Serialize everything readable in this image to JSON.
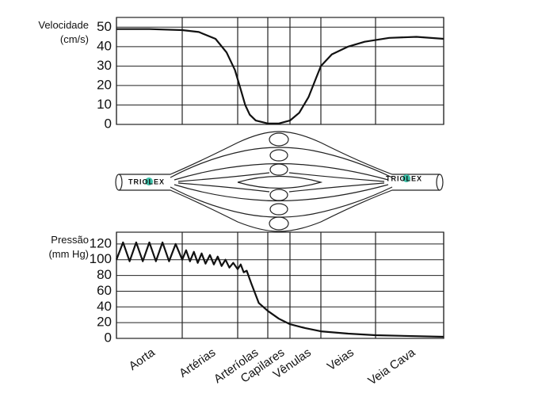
{
  "chart_data": [
    {
      "type": "line",
      "ylabel": [
        "Velocidade",
        "(cm/s)"
      ],
      "xlim": [
        0,
        7
      ],
      "ylim": [
        0,
        55
      ],
      "yticks": [
        0,
        10,
        20,
        30,
        40,
        50
      ],
      "grid": true,
      "series": [
        {
          "color": "#111111",
          "x": [
            0,
            0.5,
            1,
            1.3,
            1.6,
            1.8,
            1.95,
            2.1,
            2.25,
            2.4,
            2.6,
            3,
            3.5,
            4,
            4.3,
            4.6,
            4.85,
            5,
            5.2,
            5.5,
            5.8,
            6.2,
            6.6,
            7
          ],
          "values": [
            49,
            49,
            48.5,
            47.5,
            44,
            37,
            28,
            18,
            10,
            5,
            2,
            0.5,
            0.5,
            2,
            6,
            14,
            24,
            30,
            36,
            40,
            42.5,
            44.5,
            45,
            44
          ]
        }
      ]
    },
    {
      "type": "line",
      "ylabel": [
        "Pressão",
        "(mm Hg)"
      ],
      "categories": [
        "Aorta",
        "Artérias",
        "Arteríolas",
        "Capilares",
        "Vênulas",
        "Veias",
        "Veia Cava"
      ],
      "xlim": [
        0,
        7
      ],
      "ylim": [
        0,
        135
      ],
      "yticks": [
        0,
        20,
        40,
        60,
        80,
        100,
        120
      ],
      "grid": true,
      "series": [
        {
          "color": "#111111",
          "x": [
            0,
            0.1,
            0.2,
            0.3,
            0.4,
            0.5,
            0.6,
            0.7,
            0.8,
            0.9,
            1,
            1.07,
            1.14,
            1.21,
            1.28,
            1.35,
            1.42,
            1.5,
            1.57,
            1.64,
            1.71,
            1.78,
            1.85,
            1.92,
            2,
            2.1,
            2.2,
            2.3,
            2.45,
            2.7,
            3,
            3.5,
            4,
            4.5,
            5,
            5.5,
            6,
            7
          ],
          "values": [
            100,
            122,
            98,
            122,
            98,
            122,
            98,
            122,
            98,
            120,
            100,
            112,
            98,
            110,
            96,
            108,
            95,
            106,
            94,
            104,
            92,
            100,
            90,
            96,
            88,
            94,
            84,
            86,
            70,
            45,
            35,
            25,
            18,
            13,
            9,
            6,
            4,
            2
          ]
        }
      ]
    }
  ],
  "watermark": "TRIOLEX"
}
